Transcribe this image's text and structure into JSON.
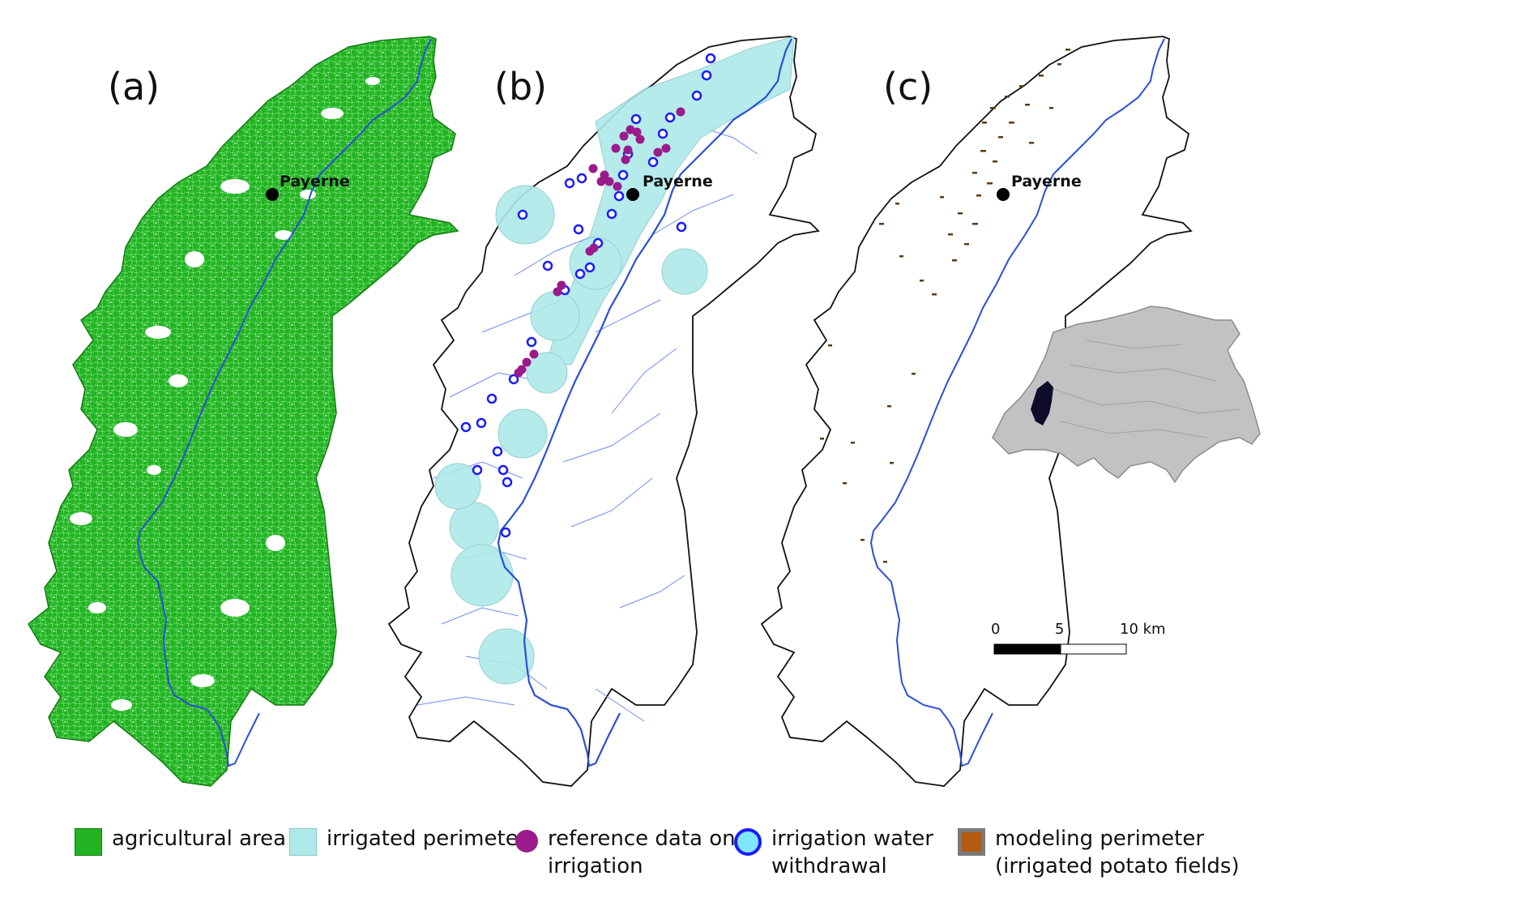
{
  "panels": [
    {
      "letter": "(a)",
      "town": "Payerne"
    },
    {
      "letter": "(b)",
      "town": "Payerne"
    },
    {
      "letter": "(c)",
      "town": "Payerne"
    }
  ],
  "scale_bar": {
    "labels": [
      "0",
      "5",
      "10 km"
    ]
  },
  "legend": [
    {
      "icon": "green-square",
      "label": "agricultural area",
      "color": "#21b321"
    },
    {
      "icon": "cyan-square",
      "label": "irrigated perimeter",
      "color": "#aee9e9"
    },
    {
      "icon": "purple-dot",
      "label_line1": "reference data on",
      "label_line2": "irrigation",
      "color": "#9b1a8c"
    },
    {
      "icon": "blue-ring",
      "label_line1": "irrigation water",
      "label_line2": "withdrawal",
      "color": "#1a1aff"
    },
    {
      "icon": "brown-square",
      "label_line1": "modeling perimeter",
      "label_line2": "(irrigated potato fields)",
      "color": "#b35a10"
    }
  ],
  "colors": {
    "agri": "#21b321",
    "irrigated": "#aee9e9",
    "reference": "#9b1a8c",
    "withdrawal": "#1a1aff",
    "river": "#2a4fd6",
    "potato": "#5a3a14",
    "border": "#111111",
    "switzerland": "#bdbdbd",
    "study_area": "#0d0d2a"
  }
}
